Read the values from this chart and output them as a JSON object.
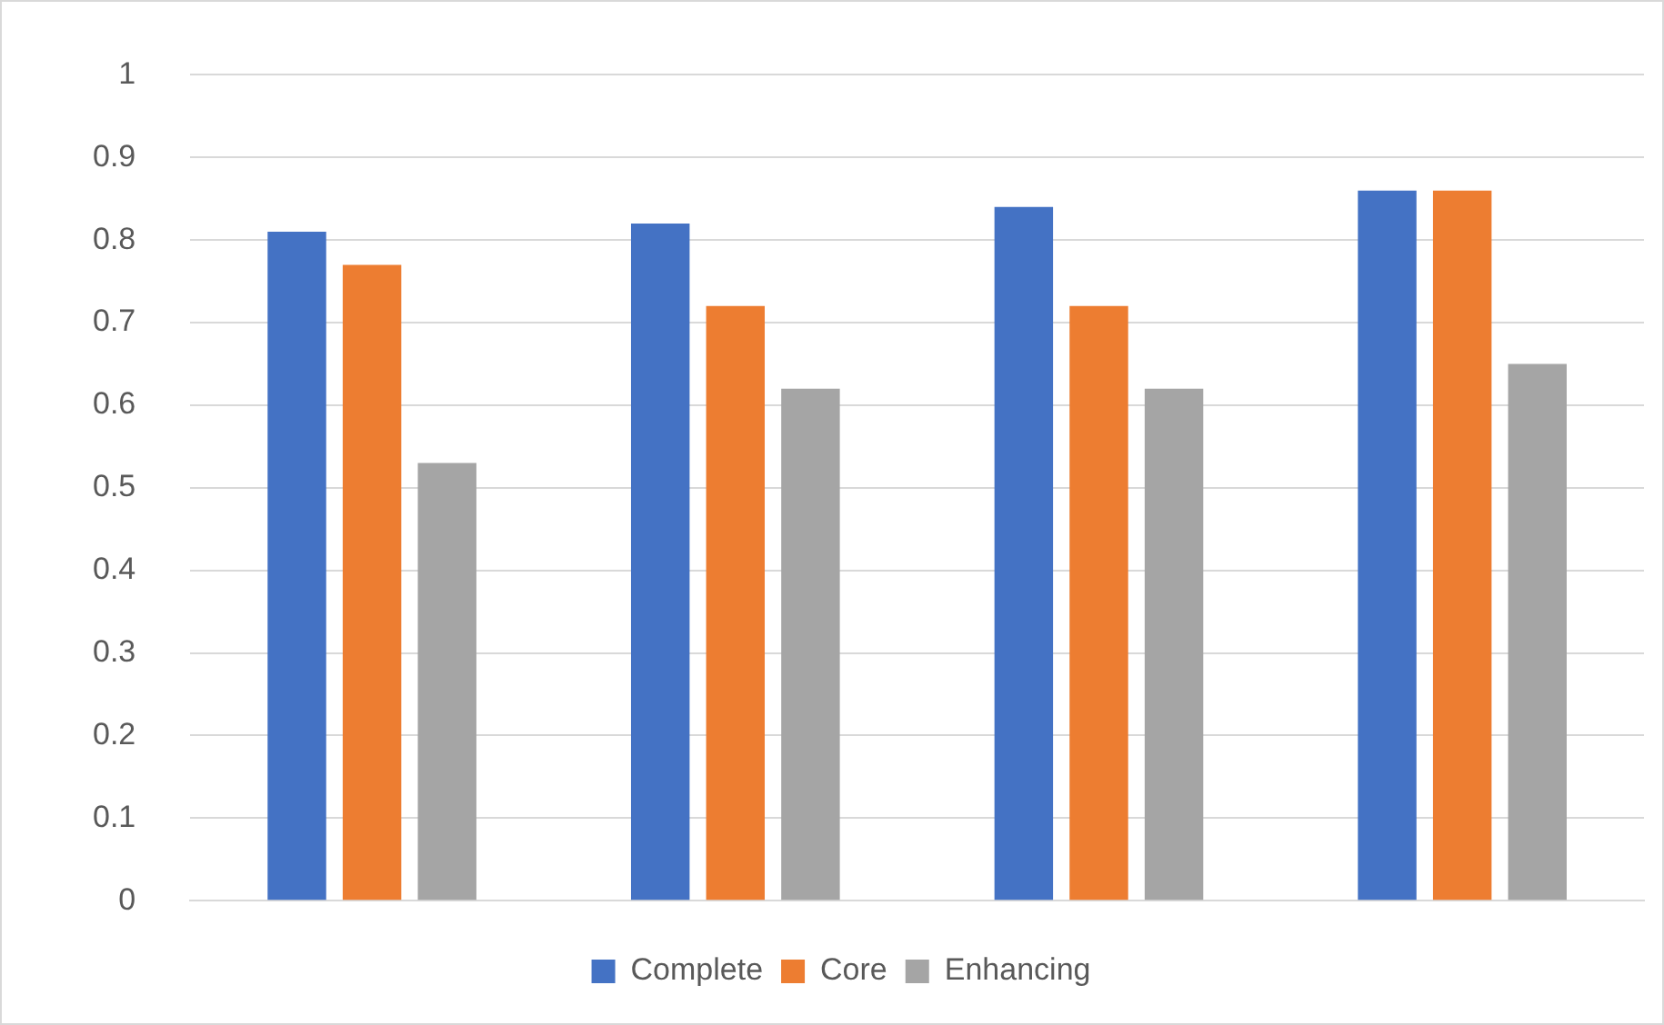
{
  "chart_data": {
    "type": "bar",
    "categories": [
      null,
      null,
      null,
      null
    ],
    "series": [
      {
        "name": "Complete",
        "color": "#4472c4",
        "values": [
          0.81,
          0.82,
          0.84,
          0.86
        ]
      },
      {
        "name": "Core",
        "color": "#ed7d31",
        "values": [
          0.77,
          0.72,
          0.72,
          0.86
        ]
      },
      {
        "name": "Enhancing",
        "color": "#a5a5a5",
        "values": [
          0.53,
          0.62,
          0.62,
          0.65
        ]
      }
    ],
    "ylim": [
      0,
      1
    ],
    "yticks": [
      0,
      0.1,
      0.2,
      0.3,
      0.4,
      0.5,
      0.6,
      0.7,
      0.8,
      0.9,
      1
    ],
    "grid": "y",
    "legend": "bottom"
  }
}
